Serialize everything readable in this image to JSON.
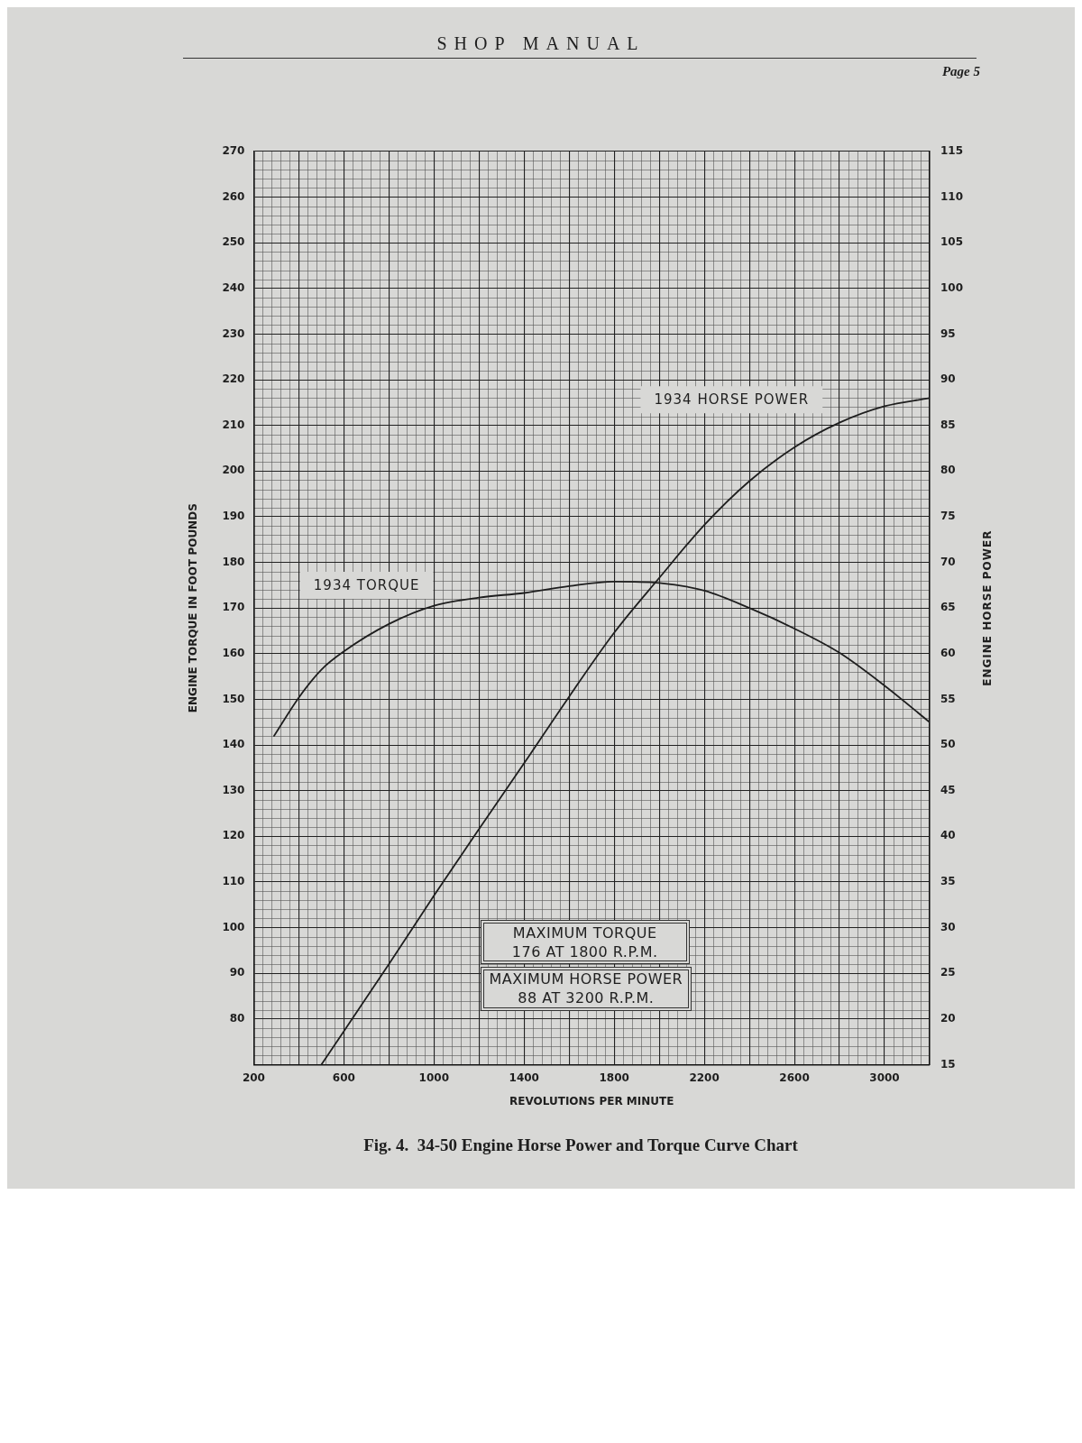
{
  "chart_data": {
    "type": "line",
    "title": "Fig. 4.  34-50 Engine Horse Power and Torque Curve Chart",
    "xlabel": "REVOLUTIONS PER MINUTE",
    "ylabel": "ENGINE TORQUE IN FOOT POUNDS",
    "y2label": "ENGINE HORSE POWER",
    "annotations": [
      "SHOP MANUAL",
      "Page 5",
      "MAXIMUM TORQUE\n176 AT 1800 R.P.M.",
      "MAXIMUM HORSE POWER\n88 AT 3200 R.P.M."
    ],
    "series": [
      {
        "name": "1934 TORQUE",
        "color": "#1e1e1e",
        "x": [
          290,
          400,
          500,
          600,
          800,
          1000,
          1200,
          1400,
          1600,
          1800,
          2000,
          2200,
          2400,
          2600,
          2800,
          3000,
          3200
        ],
        "values": [
          142,
          150.4,
          156.5,
          160.5,
          166.5,
          170.5,
          172.3,
          173.3,
          174.8,
          175.8,
          175.5,
          173.8,
          170,
          165.5,
          160.2,
          153,
          145
        ]
      },
      {
        "name": "1934 HORSE POWER",
        "color": "#1e1e1e",
        "axis": "y2",
        "x": [
          500,
          800,
          1000,
          1200,
          1400,
          1600,
          1800,
          2000,
          2200,
          2400,
          2600,
          2800,
          3000,
          3200
        ],
        "values": [
          15,
          26,
          33.5,
          40.8,
          48,
          55.3,
          62.3,
          68.3,
          74.1,
          78.9,
          82.6,
          85.3,
          87.1,
          88
        ]
      }
    ],
    "xlim": [
      200,
      3200
    ],
    "xticks": [
      200,
      {
        "value": 400,
        "label": null
      },
      600,
      {
        "value": 800,
        "label": null
      },
      1000,
      {
        "value": 1200,
        "label": null
      },
      1400,
      {
        "value": 1600,
        "label": null
      },
      1800,
      {
        "value": 2000,
        "label": null
      },
      2200,
      {
        "value": 2400,
        "label": null
      },
      2600,
      {
        "value": 2800,
        "label": null
      },
      3000
    ],
    "ylim": [
      70,
      270
    ],
    "yticks": [
      80,
      90,
      100,
      110,
      120,
      130,
      140,
      150,
      160,
      170,
      180,
      190,
      200,
      210,
      220,
      230,
      240,
      250,
      260,
      270
    ],
    "y2lim": [
      15,
      115
    ],
    "y2ticks": [
      15,
      20,
      25,
      30,
      35,
      40,
      45,
      50,
      55,
      60,
      65,
      70,
      75,
      80,
      85,
      90,
      95,
      100,
      105,
      110,
      115
    ],
    "grid": true,
    "marker": "none"
  }
}
